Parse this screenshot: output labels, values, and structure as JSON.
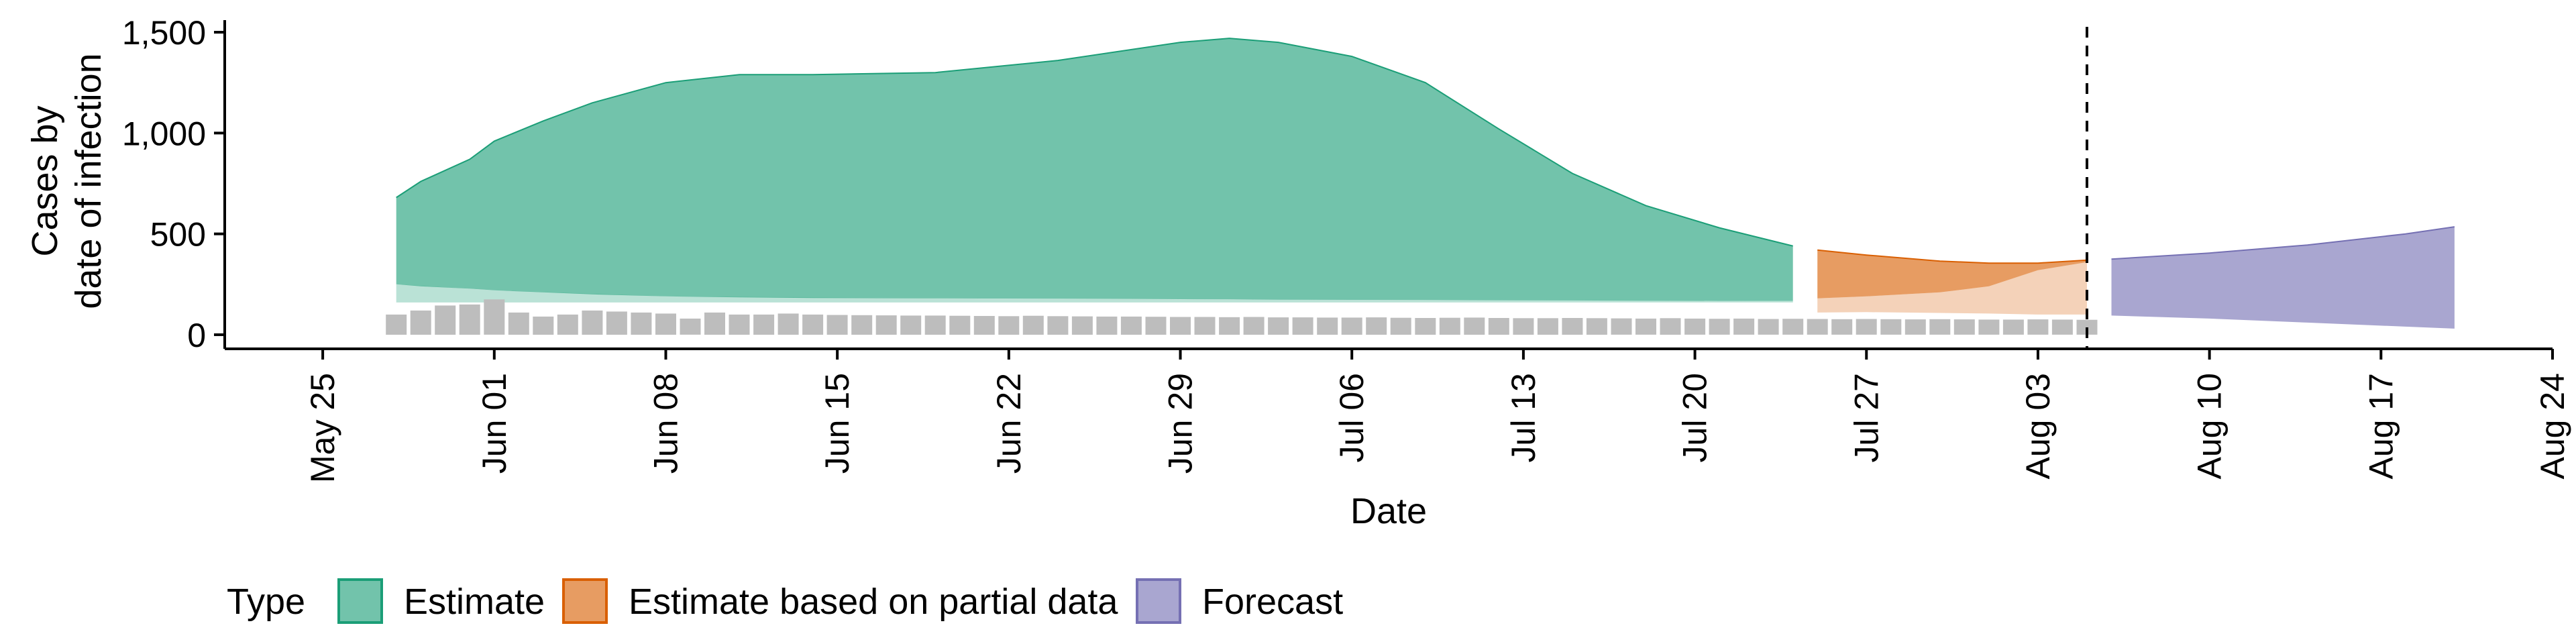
{
  "chart_data": {
    "type": "area",
    "xlabel": "Date",
    "ylabel_lines": [
      "Cases by",
      "date of infection"
    ],
    "ylim": [
      -70,
      1560
    ],
    "yticks": [
      0,
      500,
      1000,
      1500
    ],
    "ytick_labels": [
      "0",
      "500",
      "1,000",
      "1,500"
    ],
    "xlim": [
      "2020-05-21",
      "2020-08-24"
    ],
    "xticks": [
      "2020-05-25",
      "2020-06-01",
      "2020-06-08",
      "2020-06-15",
      "2020-06-22",
      "2020-06-29",
      "2020-07-06",
      "2020-07-13",
      "2020-07-20",
      "2020-07-27",
      "2020-08-03",
      "2020-08-10",
      "2020-08-17",
      "2020-08-24"
    ],
    "xtick_labels": [
      "May 25",
      "Jun 01",
      "Jun 08",
      "Jun 15",
      "Jun 22",
      "Jun 29",
      "Jul 06",
      "Jul 13",
      "Jul 20",
      "Jul 27",
      "Aug 03",
      "Aug 10",
      "Aug 17",
      "Aug 24"
    ],
    "vline_date": "2020-08-05",
    "legend_title": "Type",
    "legend_position": "bottom",
    "series": [
      {
        "name": "Estimate",
        "color": "#1B9E77",
        "outer_points": [
          {
            "date": "2020-05-28",
            "lower": 250,
            "upper": 680
          },
          {
            "date": "2020-05-29",
            "lower": 240,
            "upper": 760
          },
          {
            "date": "2020-05-31",
            "lower": 228,
            "upper": 870
          },
          {
            "date": "2020-06-01",
            "lower": 220,
            "upper": 960
          },
          {
            "date": "2020-06-03",
            "lower": 210,
            "upper": 1060
          },
          {
            "date": "2020-06-05",
            "lower": 200,
            "upper": 1150
          },
          {
            "date": "2020-06-08",
            "lower": 190,
            "upper": 1250
          },
          {
            "date": "2020-06-11",
            "lower": 185,
            "upper": 1290
          },
          {
            "date": "2020-06-14",
            "lower": 182,
            "upper": 1290
          },
          {
            "date": "2020-06-19",
            "lower": 180,
            "upper": 1300
          },
          {
            "date": "2020-06-24",
            "lower": 178,
            "upper": 1360
          },
          {
            "date": "2020-06-29",
            "lower": 176,
            "upper": 1450
          },
          {
            "date": "2020-07-01",
            "lower": 175,
            "upper": 1470
          },
          {
            "date": "2020-07-03",
            "lower": 174,
            "upper": 1450
          },
          {
            "date": "2020-07-06",
            "lower": 173,
            "upper": 1380
          },
          {
            "date": "2020-07-09",
            "lower": 172,
            "upper": 1250
          },
          {
            "date": "2020-07-12",
            "lower": 171,
            "upper": 1020
          },
          {
            "date": "2020-07-15",
            "lower": 170,
            "upper": 800
          },
          {
            "date": "2020-07-18",
            "lower": 169,
            "upper": 640
          },
          {
            "date": "2020-07-21",
            "lower": 168,
            "upper": 530
          },
          {
            "date": "2020-07-24",
            "lower": 168,
            "upper": 440
          }
        ],
        "inner_points": [
          {
            "date": "2020-05-28",
            "lower": 160,
            "upper": 250
          },
          {
            "date": "2020-06-01",
            "lower": 160,
            "upper": 220
          },
          {
            "date": "2020-06-08",
            "lower": 160,
            "upper": 190
          },
          {
            "date": "2020-06-22",
            "lower": 160,
            "upper": 178
          },
          {
            "date": "2020-07-06",
            "lower": 160,
            "upper": 173
          },
          {
            "date": "2020-07-24",
            "lower": 160,
            "upper": 168
          }
        ]
      },
      {
        "name": "Estimate based on partial data",
        "color": "#D95F02",
        "outer_points": [
          {
            "date": "2020-07-25",
            "lower": 180,
            "upper": 420
          },
          {
            "date": "2020-07-27",
            "lower": 190,
            "upper": 395
          },
          {
            "date": "2020-07-30",
            "lower": 210,
            "upper": 365
          },
          {
            "date": "2020-08-01",
            "lower": 240,
            "upper": 355
          },
          {
            "date": "2020-08-03",
            "lower": 320,
            "upper": 355
          },
          {
            "date": "2020-08-05",
            "lower": 360,
            "upper": 370
          }
        ],
        "inner_points": [
          {
            "date": "2020-07-25",
            "lower": 110,
            "upper": 180
          },
          {
            "date": "2020-07-27",
            "lower": 112,
            "upper": 190
          },
          {
            "date": "2020-07-30",
            "lower": 108,
            "upper": 210
          },
          {
            "date": "2020-08-01",
            "lower": 105,
            "upper": 240
          },
          {
            "date": "2020-08-03",
            "lower": 100,
            "upper": 320
          },
          {
            "date": "2020-08-05",
            "lower": 100,
            "upper": 360
          }
        ]
      },
      {
        "name": "Forecast",
        "color": "#7570B3",
        "outer_points": [
          {
            "date": "2020-08-06",
            "lower": 95,
            "upper": 375
          },
          {
            "date": "2020-08-10",
            "lower": 80,
            "upper": 405
          },
          {
            "date": "2020-08-14",
            "lower": 60,
            "upper": 445
          },
          {
            "date": "2020-08-18",
            "lower": 40,
            "upper": 500
          },
          {
            "date": "2020-08-20",
            "lower": 30,
            "upper": 535
          }
        ]
      }
    ],
    "bars_color": "#BDBDBD",
    "bars_start_date": "2020-05-28",
    "bars": [
      100,
      120,
      145,
      150,
      175,
      110,
      90,
      100,
      120,
      115,
      110,
      105,
      80,
      110,
      100,
      100,
      105,
      100,
      98,
      97,
      96,
      95,
      95,
      94,
      93,
      92,
      94,
      92,
      91,
      90,
      90,
      89,
      88,
      88,
      87,
      88,
      86,
      86,
      85,
      85,
      86,
      84,
      83,
      84,
      85,
      83,
      82,
      82,
      83,
      82,
      81,
      80,
      82,
      80,
      79,
      80,
      78,
      79,
      78,
      77,
      78,
      77,
      76,
      77,
      76,
      75,
      75,
      76,
      75,
      74
    ]
  }
}
